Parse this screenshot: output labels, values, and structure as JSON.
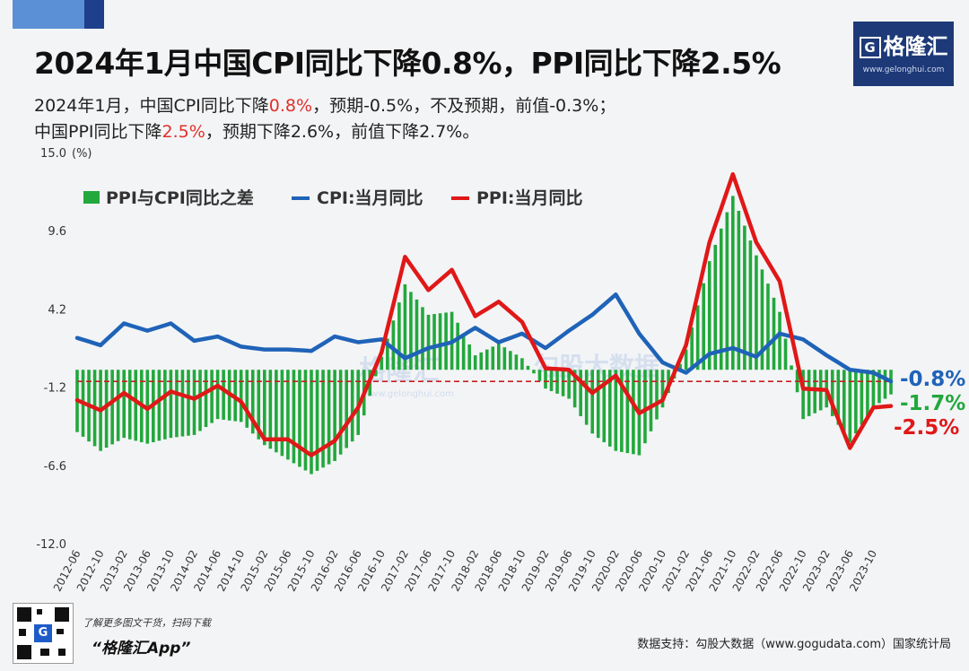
{
  "header": {
    "title": "2024年1月中国CPI同比下降0.8%，PPI同比下降2.5%",
    "line1": [
      "2024年1月，中国CPI同比下降",
      "0.8%",
      "，预期-0.5%，不及预期，前值-0.3%；"
    ],
    "line2": [
      "中国PPI同比下降",
      "2.5%",
      "，预期下降2.6%，前值下降2.7%。"
    ]
  },
  "logo": {
    "name": "格隆汇",
    "letter": "G",
    "url": "www.gelonghui.com"
  },
  "footer": {
    "note": "了解更多图文干货，扫码下载",
    "app": "“格隆汇App”",
    "source": "数据支持：勾股大数据（www.gogudata.com）国家统计局"
  },
  "colors": {
    "cpi": "#1f63b8",
    "ppi": "#e01818",
    "diff": "#22a83c",
    "dash": "#c81e1e"
  },
  "chart_data": {
    "type": "bar",
    "unit_label": "(%)",
    "ylim": [
      -12.0,
      15.0
    ],
    "yticks": [
      15.0,
      9.6,
      4.2,
      -1.2,
      -6.6,
      -12.0
    ],
    "x_labels": [
      "2012-06",
      "2012-10",
      "2013-02",
      "2013-06",
      "2013-10",
      "2014-02",
      "2014-06",
      "2014-10",
      "2015-02",
      "2015-06",
      "2015-10",
      "2016-02",
      "2016-06",
      "2016-10",
      "2017-02",
      "2017-06",
      "2017-10",
      "2018-02",
      "2018-06",
      "2018-10",
      "2019-02",
      "2019-06",
      "2019-10",
      "2020-02",
      "2020-06",
      "2020-10",
      "2021-02",
      "2021-06",
      "2021-10",
      "2022-02",
      "2022-06",
      "2022-10",
      "2023-02",
      "2023-06",
      "2023-10"
    ],
    "x": [
      "2012-06",
      "2012-10",
      "2013-02",
      "2013-06",
      "2013-10",
      "2014-02",
      "2014-06",
      "2014-10",
      "2015-02",
      "2015-06",
      "2015-10",
      "2016-02",
      "2016-06",
      "2016-10",
      "2017-02",
      "2017-06",
      "2017-10",
      "2018-02",
      "2018-06",
      "2018-10",
      "2019-02",
      "2019-06",
      "2019-10",
      "2020-02",
      "2020-06",
      "2020-10",
      "2021-02",
      "2021-06",
      "2021-10",
      "2022-02",
      "2022-06",
      "2022-10",
      "2023-02",
      "2023-06",
      "2023-10",
      "2024-01"
    ],
    "series": [
      {
        "name": "PPI与CPI同比之差",
        "kind": "bar",
        "values": [
          -4.3,
          -5.6,
          -4.7,
          -5.1,
          -4.7,
          -4.5,
          -3.4,
          -3.6,
          -5.2,
          -6.2,
          -7.2,
          -6.3,
          -4.5,
          0.9,
          5.9,
          3.8,
          4.0,
          1.0,
          1.8,
          0.8,
          -1.3,
          -2.0,
          -4.4,
          -5.6,
          -5.9,
          -2.6,
          1.4,
          7.5,
          12.0,
          7.9,
          4.0,
          -3.4,
          -2.6,
          -5.0,
          -2.6,
          -1.7
        ]
      },
      {
        "name": "CPI:当月同比",
        "kind": "line",
        "values": [
          2.2,
          1.7,
          3.2,
          2.7,
          3.2,
          2.0,
          2.3,
          1.6,
          1.4,
          1.4,
          1.3,
          2.3,
          1.9,
          2.1,
          0.8,
          1.5,
          1.9,
          2.9,
          1.9,
          2.5,
          1.5,
          2.7,
          3.8,
          5.2,
          2.5,
          0.5,
          -0.2,
          1.1,
          1.5,
          0.9,
          2.5,
          2.1,
          1.0,
          0.0,
          -0.2,
          -0.8
        ]
      },
      {
        "name": "PPI:当月同比",
        "kind": "line",
        "values": [
          -2.1,
          -2.8,
          -1.6,
          -2.7,
          -1.5,
          -2.0,
          -1.1,
          -2.2,
          -4.8,
          -4.8,
          -5.9,
          -4.9,
          -2.6,
          1.2,
          7.8,
          5.5,
          6.9,
          3.7,
          4.7,
          3.3,
          0.1,
          0.0,
          -1.6,
          -0.4,
          -3.0,
          -2.1,
          1.7,
          8.8,
          13.5,
          8.8,
          6.1,
          -1.3,
          -1.4,
          -5.4,
          -2.6,
          -2.5
        ]
      }
    ],
    "end_labels": [
      "-0.8%",
      "-1.7%",
      "-2.5%"
    ],
    "watermark": [
      "格隆汇",
      "www.gelonghui.com",
      "勾股大数据"
    ]
  }
}
